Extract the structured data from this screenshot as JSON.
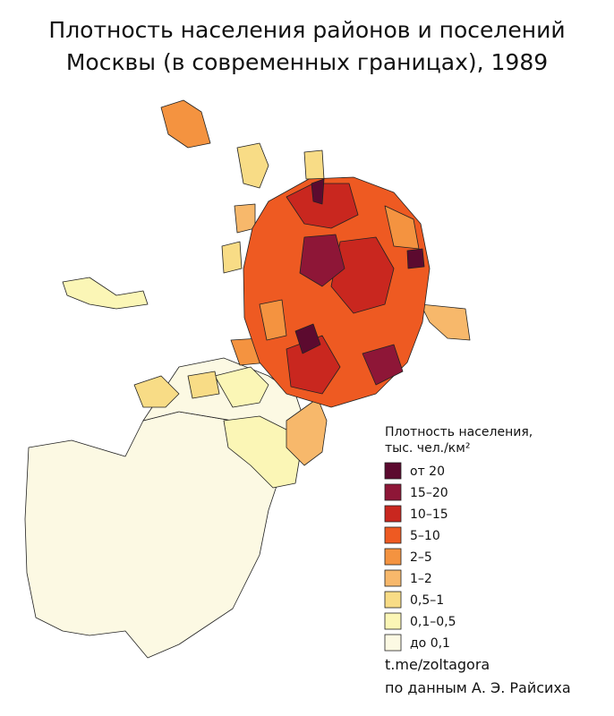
{
  "header": {
    "title_lines": [
      "Плотность населения районов и поселений",
      "Москвы (в современных границах), 1989"
    ]
  },
  "legend": {
    "title_lines": [
      "Плотность населения,",
      "тыс. чел./км²"
    ],
    "items": [
      {
        "label": "от 20",
        "color": "#5c0a2f"
      },
      {
        "label": "15–20",
        "color": "#8e1637"
      },
      {
        "label": "10–15",
        "color": "#c9271f"
      },
      {
        "label": "5–10",
        "color": "#ee5a22"
      },
      {
        "label": "2–5",
        "color": "#f49340"
      },
      {
        "label": "1–2",
        "color": "#f7b86b"
      },
      {
        "label": "0,5–1",
        "color": "#f8dc86"
      },
      {
        "label": "0,1–0,5",
        "color": "#fbf6b6"
      },
      {
        "label": "до 0,1",
        "color": "#fcf9e3"
      }
    ]
  },
  "credits": [
    "t.me/zoltagora",
    "по данным А. Э. Райсиха"
  ]
}
